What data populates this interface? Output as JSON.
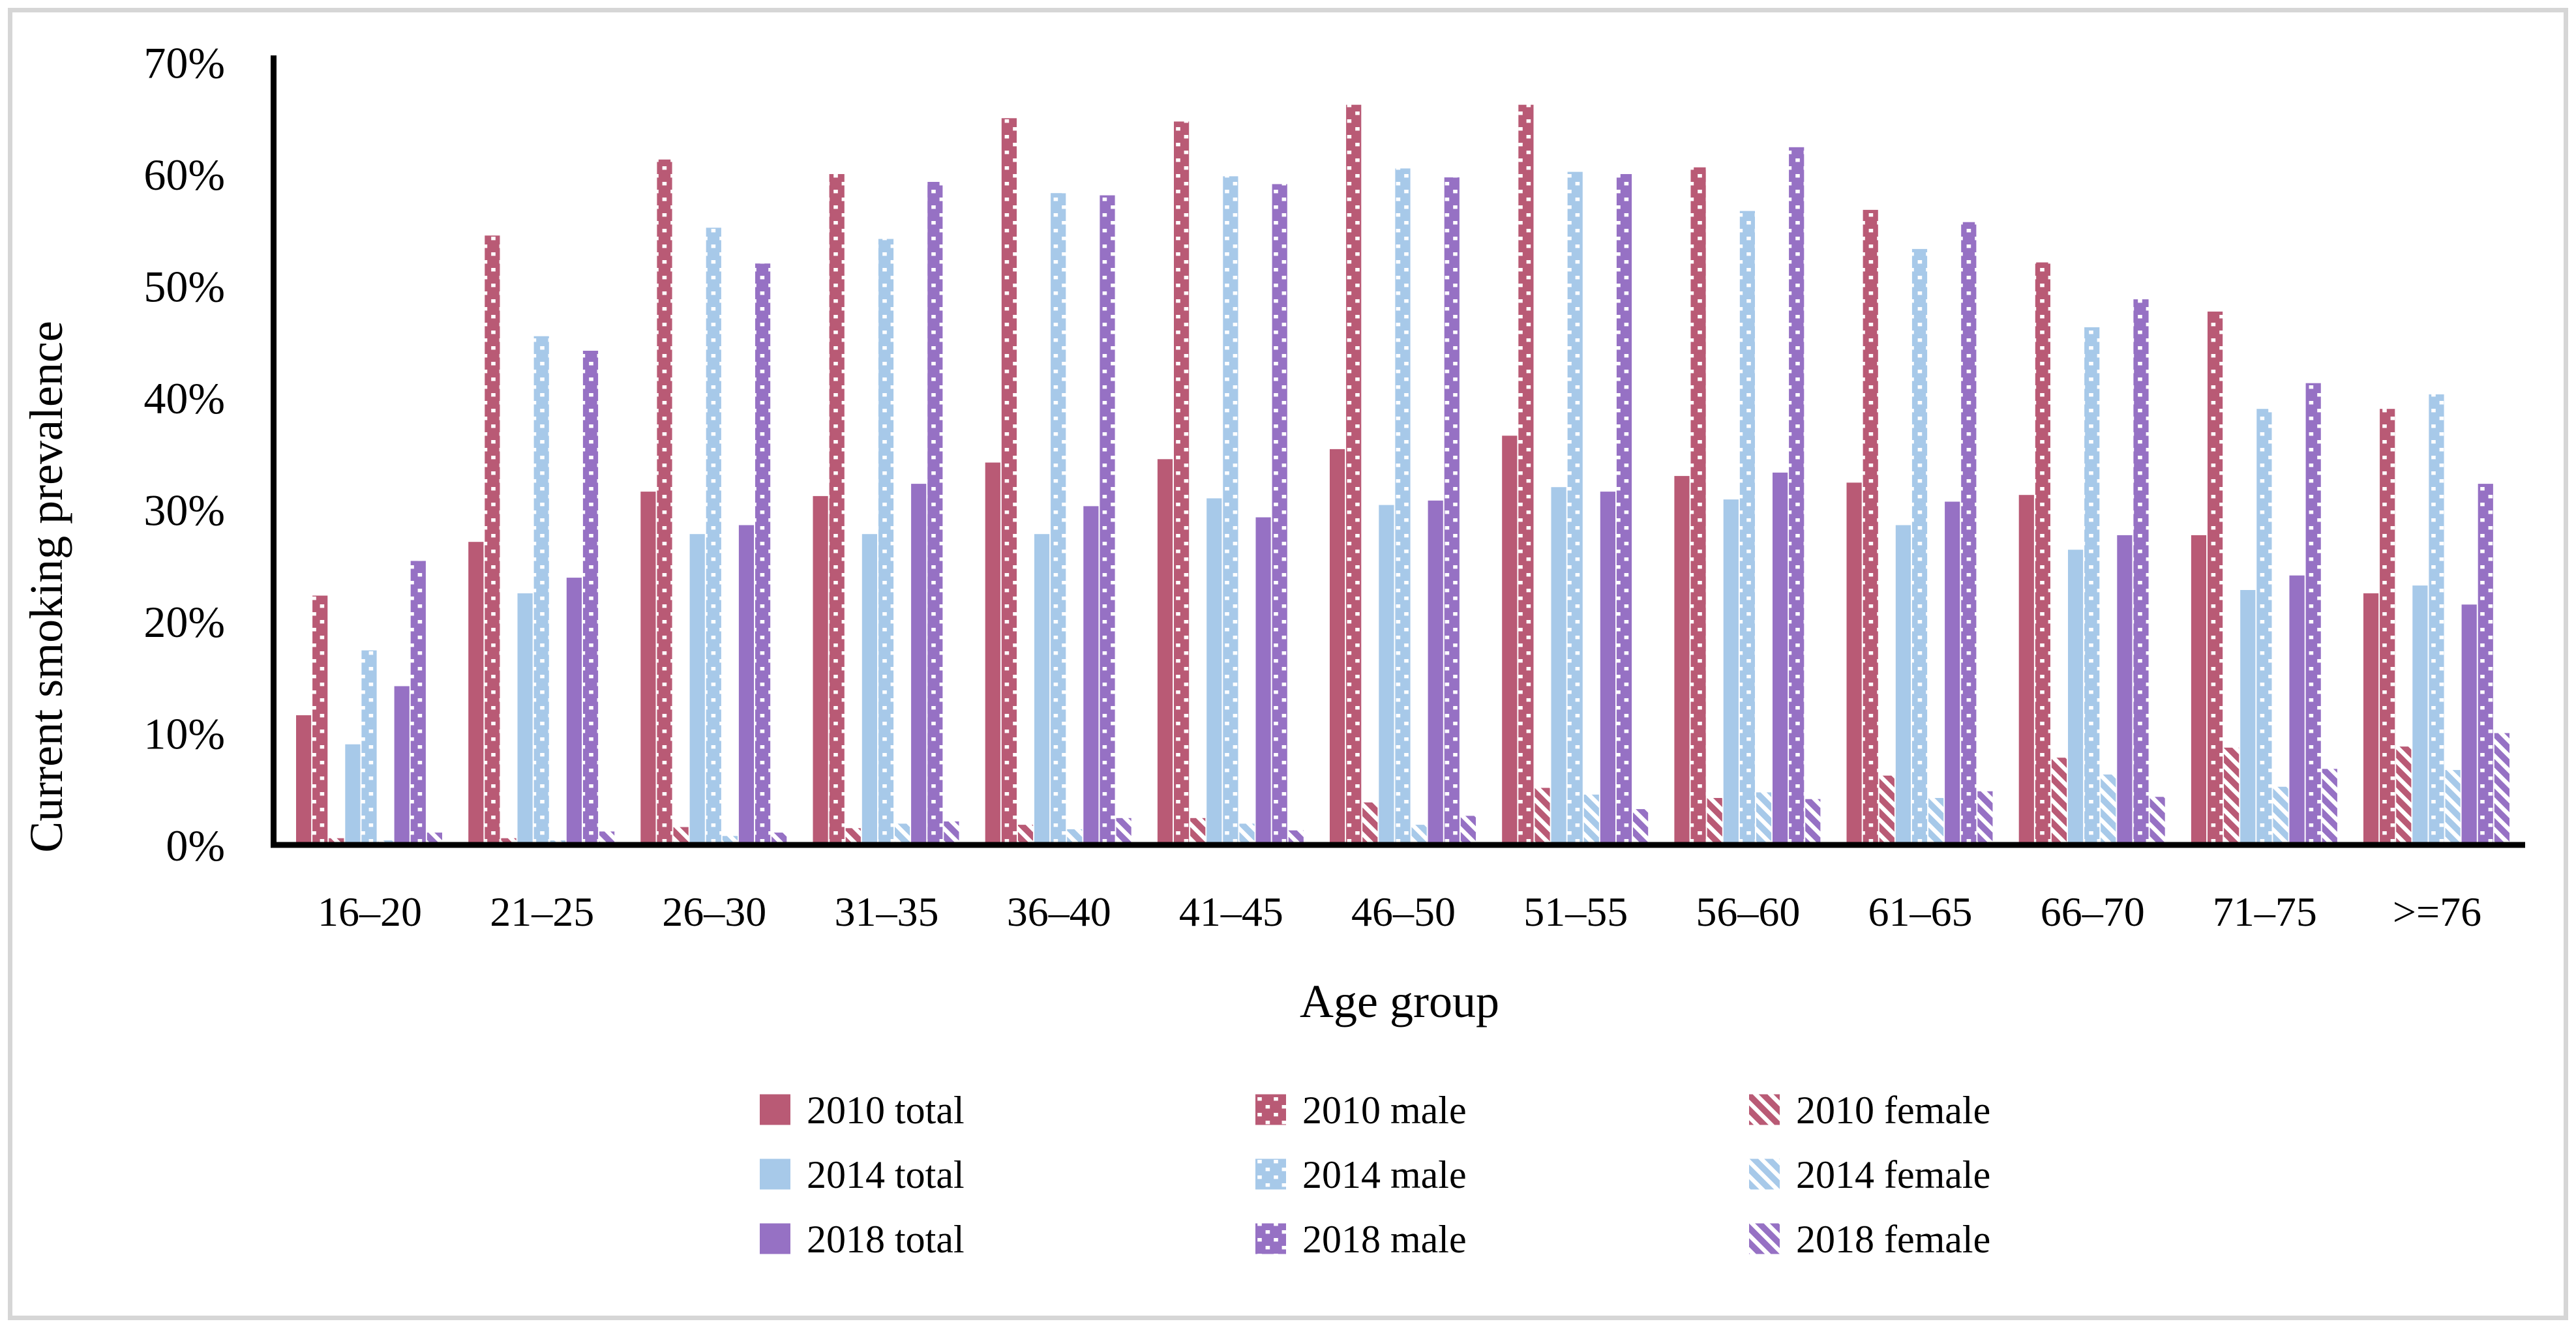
{
  "figure": {
    "background": "#ffffff",
    "border_color": "#d6d6d6"
  },
  "chart_data": {
    "type": "bar",
    "title": "",
    "xlabel": "Age group",
    "ylabel": "Current smoking prevalence",
    "ylim": [
      0,
      70
    ],
    "grid": "off",
    "legend_position": "bottom",
    "yticks": [
      0,
      10,
      20,
      30,
      40,
      50,
      60,
      70
    ],
    "ytick_labels": [
      "0%",
      "10%",
      "20%",
      "30%",
      "40%",
      "50%",
      "60%",
      "70%"
    ],
    "categories": [
      "16–20",
      "21–25",
      "26–30",
      "31–35",
      "36–40",
      "41–45",
      "46–50",
      "51–55",
      "56–60",
      "61–65",
      "66–70",
      "71–75",
      ">=76"
    ],
    "series": [
      {
        "name": "2010 total",
        "year": "2010",
        "group": "total",
        "pattern": "solid",
        "color": "#b95a75",
        "values": [
          11.6,
          27.1,
          31.6,
          31.2,
          34.2,
          34.5,
          35.4,
          36.6,
          33.0,
          32.4,
          31.3,
          27.7,
          22.5
        ]
      },
      {
        "name": "2010 male",
        "year": "2010",
        "group": "male",
        "pattern": "dots",
        "color": "#b95a75",
        "values": [
          22.3,
          54.5,
          61.3,
          60.0,
          65.0,
          64.7,
          66.2,
          66.2,
          60.6,
          56.8,
          52.1,
          47.7,
          39.0
        ]
      },
      {
        "name": "2010 female",
        "year": "2010",
        "group": "female",
        "pattern": "hatch",
        "color": "#b95a75",
        "values": [
          0.6,
          0.6,
          1.6,
          1.5,
          1.8,
          2.4,
          3.8,
          5.1,
          4.2,
          6.2,
          7.8,
          8.7,
          8.8
        ]
      },
      {
        "name": "2014 total",
        "year": "2014",
        "group": "total",
        "pattern": "solid",
        "color": "#a7c9e9",
        "values": [
          9.0,
          22.5,
          27.8,
          27.8,
          27.8,
          31.0,
          30.4,
          32.0,
          30.9,
          28.6,
          26.4,
          22.8,
          23.2
        ]
      },
      {
        "name": "2014 male",
        "year": "2014",
        "group": "male",
        "pattern": "dots",
        "color": "#a7c9e9",
        "values": [
          17.4,
          45.5,
          55.2,
          54.2,
          58.3,
          59.8,
          60.5,
          60.2,
          56.7,
          53.3,
          46.3,
          39.0,
          40.3
        ]
      },
      {
        "name": "2014 female",
        "year": "2014",
        "group": "female",
        "pattern": "hatch",
        "color": "#a7c9e9",
        "values": [
          0.4,
          0.4,
          0.8,
          1.9,
          1.4,
          1.9,
          1.8,
          4.5,
          4.7,
          4.2,
          6.3,
          5.2,
          6.7
        ]
      },
      {
        "name": "2018 total",
        "year": "2018",
        "group": "total",
        "pattern": "solid",
        "color": "#9671c4",
        "values": [
          14.2,
          23.9,
          28.6,
          32.3,
          30.3,
          29.3,
          30.8,
          31.6,
          33.3,
          30.7,
          27.7,
          24.1,
          21.5
        ]
      },
      {
        "name": "2018 male",
        "year": "2018",
        "group": "male",
        "pattern": "dots",
        "color": "#9671c4",
        "values": [
          25.4,
          44.2,
          52.0,
          59.3,
          58.1,
          59.1,
          59.7,
          60.0,
          62.4,
          55.7,
          48.8,
          41.3,
          32.3
        ]
      },
      {
        "name": "2018 female",
        "year": "2018",
        "group": "female",
        "pattern": "hatch",
        "color": "#9671c4",
        "values": [
          1.1,
          1.2,
          1.1,
          2.1,
          2.4,
          1.3,
          2.6,
          3.2,
          4.1,
          4.8,
          4.3,
          6.8,
          10.0
        ]
      }
    ]
  }
}
